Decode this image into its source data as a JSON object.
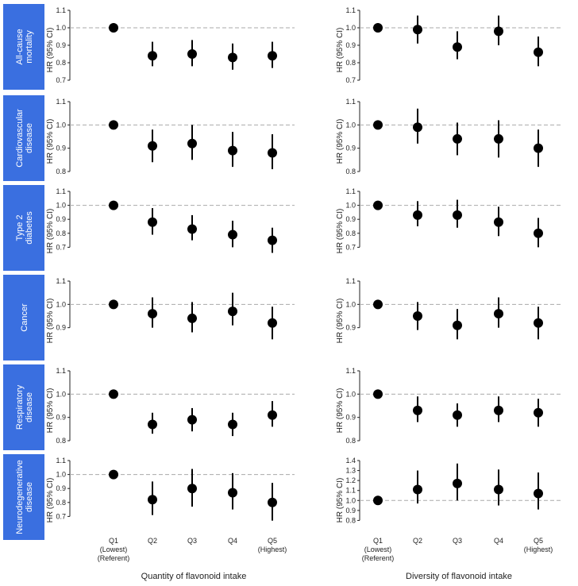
{
  "chart_data": {
    "type": "scatter",
    "error_bars": true,
    "y_label": "HR (95% CI)",
    "reference_line": 1.0,
    "colors": {
      "row_band": "#3a6fe0",
      "marker": "#000000",
      "reference": "#aaaaaa"
    },
    "columns": [
      {
        "xlabel": "Quantity of flavonoid intake"
      },
      {
        "xlabel": "Diversity of flavonoid intake"
      }
    ],
    "categories": [
      [
        "Q1",
        "(Lowest)",
        "(Referent)"
      ],
      [
        "Q2"
      ],
      [
        "Q3"
      ],
      [
        "Q4"
      ],
      [
        "Q5",
        "(Highest)"
      ]
    ],
    "rows": [
      {
        "label": [
          "All-cause",
          "mortality"
        ],
        "panels": [
          {
            "ylim": [
              0.7,
              1.1
            ],
            "yticks": [
              0.7,
              0.8,
              0.9,
              1.0,
              1.1
            ],
            "hr": [
              1.0,
              0.84,
              0.85,
              0.83,
              0.84
            ],
            "lo": [
              null,
              0.78,
              0.78,
              0.76,
              0.77
            ],
            "hi": [
              null,
              0.92,
              0.93,
              0.91,
              0.92
            ]
          },
          {
            "ylim": [
              0.7,
              1.1
            ],
            "yticks": [
              0.7,
              0.8,
              0.9,
              1.0,
              1.1
            ],
            "hr": [
              1.0,
              0.99,
              0.89,
              0.98,
              0.86
            ],
            "lo": [
              null,
              0.91,
              0.82,
              0.9,
              0.78
            ],
            "hi": [
              null,
              1.07,
              0.98,
              1.07,
              0.95
            ]
          }
        ]
      },
      {
        "label": [
          "Cardiovascular",
          "disease"
        ],
        "panels": [
          {
            "ylim": [
              0.8,
              1.1
            ],
            "yticks": [
              0.8,
              0.9,
              1.0,
              1.1
            ],
            "hr": [
              1.0,
              0.91,
              0.92,
              0.89,
              0.88
            ],
            "lo": [
              null,
              0.84,
              0.85,
              0.82,
              0.81
            ],
            "hi": [
              null,
              0.98,
              1.0,
              0.97,
              0.96
            ]
          },
          {
            "ylim": [
              0.8,
              1.1
            ],
            "yticks": [
              0.8,
              0.9,
              1.0,
              1.1
            ],
            "hr": [
              1.0,
              0.99,
              0.94,
              0.94,
              0.9
            ],
            "lo": [
              null,
              0.92,
              0.87,
              0.86,
              0.82
            ],
            "hi": [
              null,
              1.07,
              1.01,
              1.02,
              0.98
            ]
          }
        ]
      },
      {
        "label": [
          "Type 2",
          "diabetes"
        ],
        "panels": [
          {
            "ylim": [
              0.6,
              1.1
            ],
            "yticks": [
              0.7,
              0.8,
              0.9,
              1.0,
              1.1
            ],
            "hr": [
              1.0,
              0.88,
              0.83,
              0.79,
              0.75
            ],
            "lo": [
              null,
              0.79,
              0.75,
              0.7,
              0.66
            ],
            "hi": [
              null,
              0.98,
              0.93,
              0.89,
              0.84
            ]
          },
          {
            "ylim": [
              0.6,
              1.1
            ],
            "yticks": [
              0.7,
              0.8,
              0.9,
              1.0,
              1.1
            ],
            "hr": [
              1.0,
              0.93,
              0.93,
              0.88,
              0.8
            ],
            "lo": [
              null,
              0.85,
              0.84,
              0.78,
              0.7
            ],
            "hi": [
              null,
              1.03,
              1.04,
              0.99,
              0.91
            ]
          }
        ]
      },
      {
        "label": [
          "Cancer"
        ],
        "panels": [
          {
            "ylim": [
              0.8,
              1.1
            ],
            "yticks": [
              0.9,
              1.0,
              1.1
            ],
            "hr": [
              1.0,
              0.96,
              0.94,
              0.97,
              0.92
            ],
            "lo": [
              null,
              0.9,
              0.88,
              0.91,
              0.85
            ],
            "hi": [
              null,
              1.03,
              1.01,
              1.05,
              0.99
            ]
          },
          {
            "ylim": [
              0.8,
              1.1
            ],
            "yticks": [
              0.9,
              1.0,
              1.1
            ],
            "hr": [
              1.0,
              0.95,
              0.91,
              0.96,
              0.92
            ],
            "lo": [
              null,
              0.89,
              0.85,
              0.9,
              0.85
            ],
            "hi": [
              null,
              1.01,
              0.98,
              1.03,
              0.99
            ]
          }
        ]
      },
      {
        "label": [
          "Respiratory",
          "disease"
        ],
        "panels": [
          {
            "ylim": [
              0.8,
              1.1
            ],
            "yticks": [
              0.8,
              0.9,
              1.0,
              1.1
            ],
            "hr": [
              1.0,
              0.87,
              0.89,
              0.87,
              0.91
            ],
            "lo": [
              null,
              0.83,
              0.84,
              0.82,
              0.86
            ],
            "hi": [
              null,
              0.92,
              0.94,
              0.92,
              0.97
            ]
          },
          {
            "ylim": [
              0.8,
              1.1
            ],
            "yticks": [
              0.8,
              0.9,
              1.0,
              1.1
            ],
            "hr": [
              1.0,
              0.93,
              0.91,
              0.93,
              0.92
            ],
            "lo": [
              null,
              0.88,
              0.86,
              0.88,
              0.86
            ],
            "hi": [
              null,
              0.99,
              0.96,
              0.99,
              0.98
            ]
          }
        ]
      },
      {
        "label": [
          "Neurodegenerative",
          "disease"
        ],
        "panels": [
          {
            "ylim": [
              0.6,
              1.1
            ],
            "yticks": [
              0.7,
              0.8,
              0.9,
              1.0,
              1.1
            ],
            "hr": [
              1.0,
              0.82,
              0.9,
              0.87,
              0.8
            ],
            "lo": [
              null,
              0.71,
              0.77,
              0.75,
              0.67
            ],
            "hi": [
              null,
              0.95,
              1.04,
              1.01,
              0.94
            ]
          },
          {
            "ylim": [
              0.7,
              1.4
            ],
            "yticks": [
              0.8,
              0.9,
              1.0,
              1.1,
              1.2,
              1.3,
              1.4
            ],
            "hr": [
              1.0,
              1.11,
              1.17,
              1.11,
              1.07
            ],
            "lo": [
              null,
              0.97,
              1.0,
              0.95,
              0.91
            ],
            "hi": [
              null,
              1.3,
              1.37,
              1.31,
              1.28
            ]
          }
        ]
      }
    ]
  }
}
